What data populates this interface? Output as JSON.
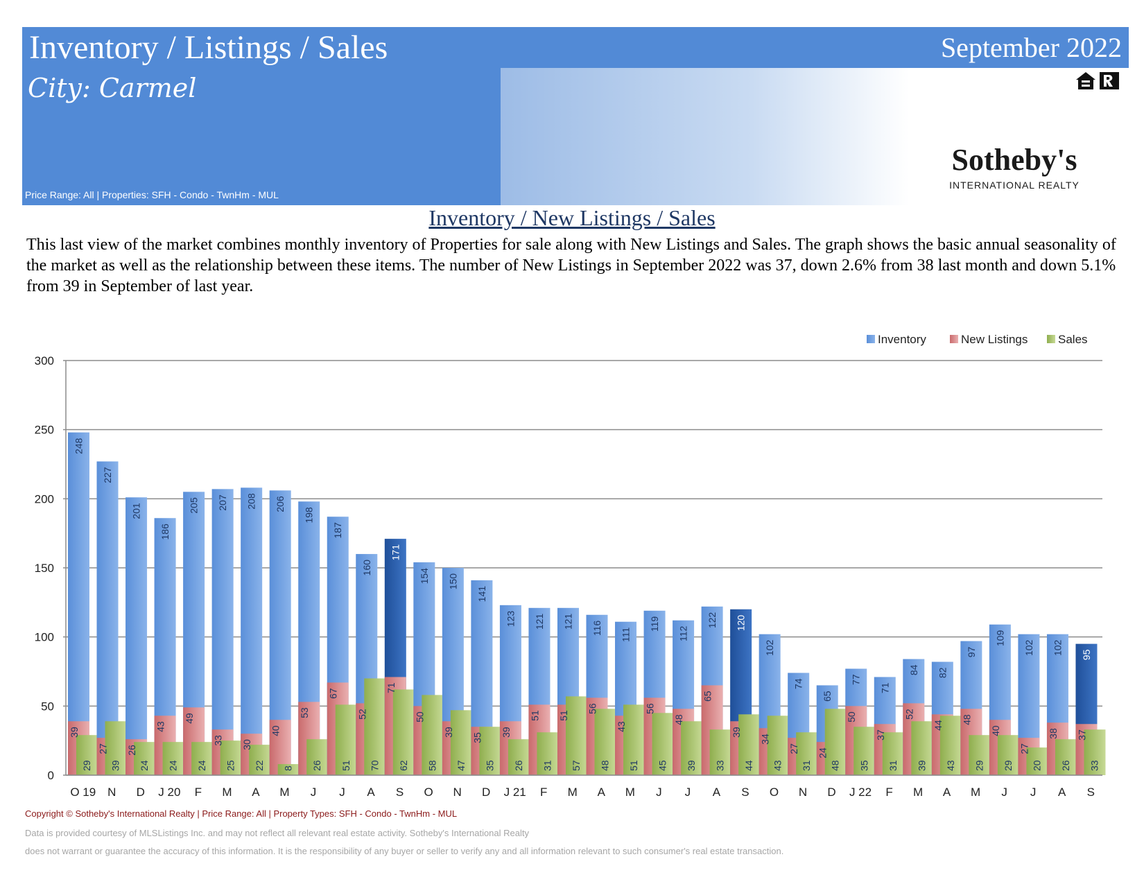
{
  "header": {
    "title": "Inventory / Listings / Sales",
    "date": "September 2022",
    "city": "City:  Carmel",
    "range_note": "Price Range:  All | Properties:  SFH - Condo - TwnHm - MUL",
    "logo_main": "Sotheby's",
    "logo_sub": "INTERNATIONAL REALTY"
  },
  "section_title": "Inventory / New Listings / Sales",
  "description": "This last view of the market combines monthly inventory of Properties for sale along with New Listings and Sales.  The graph shows the basic annual seasonality of the market as well as the relationship between these items.  The number of New Listings in September 2022 was 37, down 2.6% from 38 last month and down 5.1% from 39 in September of last year.",
  "footer": {
    "line1": "Copyright © Sotheby's International Realty  |  Price Range:  All  |  Property Types:  SFH - Condo - TwnHm - MUL",
    "line2": "Data is provided courtesy of MLSListings Inc. and may not reflect all relevant real estate activity.  Sotheby's International Realty",
    "line3": "does not warrant or guarantee the accuracy of this information.  It is the responsibility of any buyer or seller to verify any and all information relevant to such consumer's real estate transaction."
  },
  "colors": {
    "header_blue": "#528ad6",
    "inventory": "#6a9ce0",
    "inventory_highlight": "#2f63b0",
    "new_listings": "#d9898a",
    "sales": "#a9c46c",
    "title_navy": "#1f3864"
  },
  "chart_data": {
    "type": "bar",
    "categories": [
      "O 19",
      "N",
      "D",
      "J 20",
      "F",
      "M",
      "A",
      "M",
      "J",
      "J",
      "A",
      "S",
      "O",
      "N",
      "D",
      "J 21",
      "F",
      "M",
      "A",
      "M",
      "J",
      "J",
      "A",
      "S",
      "O",
      "N",
      "D",
      "J 22",
      "F",
      "M",
      "A",
      "M",
      "J",
      "J",
      "A",
      "S"
    ],
    "series": [
      {
        "name": "Inventory",
        "values": [
          248,
          227,
          201,
          186,
          205,
          207,
          208,
          206,
          198,
          187,
          160,
          171,
          154,
          150,
          141,
          123,
          121,
          121,
          116,
          111,
          119,
          112,
          122,
          120,
          102,
          74,
          65,
          77,
          71,
          84,
          82,
          97,
          109,
          102,
          102,
          95
        ]
      },
      {
        "name": "New Listings",
        "values": [
          39,
          27,
          26,
          43,
          49,
          33,
          30,
          40,
          53,
          67,
          52,
          71,
          50,
          39,
          35,
          39,
          51,
          51,
          56,
          43,
          56,
          48,
          65,
          39,
          34,
          27,
          24,
          50,
          37,
          52,
          44,
          48,
          40,
          27,
          38,
          37
        ]
      },
      {
        "name": "Sales",
        "values": [
          29,
          39,
          24,
          24,
          24,
          25,
          22,
          8,
          26,
          51,
          70,
          62,
          58,
          47,
          35,
          26,
          31,
          57,
          48,
          51,
          45,
          39,
          33,
          44,
          43,
          31,
          48,
          35,
          31,
          39,
          43,
          29,
          29,
          20,
          26,
          33
        ]
      }
    ],
    "highlighted_categories": [
      11,
      23,
      35
    ],
    "ylim": [
      0,
      300
    ],
    "yticks": [
      0,
      50,
      100,
      150,
      200,
      250,
      300
    ],
    "grid": true,
    "legend": "top-right"
  }
}
